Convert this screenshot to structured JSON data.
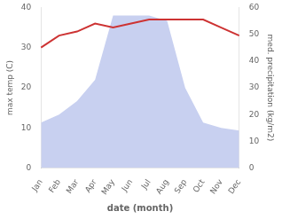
{
  "chart_data": {
    "type": "line",
    "xlabel": "date (month)",
    "ylabel": "max temp (C)",
    "y2label": "med. precipitation (kg/m2)",
    "categories": [
      "Jan",
      "Feb",
      "Mar",
      "Apr",
      "May",
      "Jun",
      "Jul",
      "Aug",
      "Sep",
      "Oct",
      "Nov",
      "Dec"
    ],
    "series": [
      {
        "type": "area",
        "axis": "y2",
        "color": "#c8d0f0",
        "values": [
          17,
          20,
          25,
          33,
          57,
          57,
          57,
          55,
          30,
          17,
          15,
          14
        ]
      },
      {
        "type": "line",
        "color": "#cd3333",
        "values": [
          30,
          33,
          34,
          36,
          35,
          36,
          37,
          37,
          37,
          37,
          35,
          33
        ]
      }
    ],
    "ylim": [
      0,
      40
    ],
    "yticks": [
      0,
      10,
      20,
      30,
      40
    ],
    "y2lim": [
      0,
      60
    ],
    "y2ticks": [
      0,
      10,
      20,
      30,
      40,
      50,
      60
    ],
    "grid": false
  }
}
